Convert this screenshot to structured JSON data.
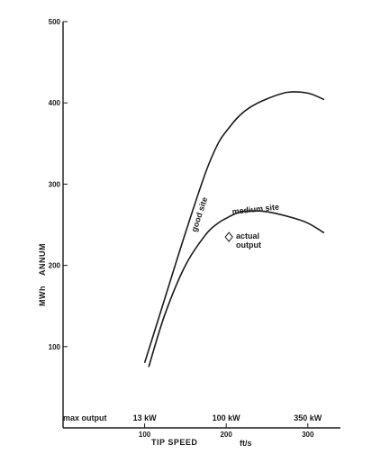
{
  "chart_data": {
    "type": "line",
    "title": "",
    "xlabel": "TIP SPEED",
    "xunit": "ft/s",
    "ylabel": "MWh",
    "ylabel2": "ANNUM",
    "xlim": [
      0,
      340
    ],
    "ylim": [
      0,
      500
    ],
    "x_ticks": [
      100,
      200,
      300
    ],
    "y_ticks": [
      100,
      200,
      300,
      400,
      500
    ],
    "series": [
      {
        "name": "good site",
        "x": [
          100,
          125,
          150,
          175,
          190,
          200,
          215,
          230,
          250,
          275,
          300,
          320
        ],
        "y": [
          80,
          160,
          240,
          315,
          350,
          365,
          383,
          395,
          405,
          413,
          412,
          404
        ]
      },
      {
        "name": "medium site",
        "x": [
          105,
          125,
          150,
          175,
          190,
          200,
          215,
          230,
          250,
          280,
          300,
          320
        ],
        "y": [
          75,
          140,
          200,
          238,
          252,
          258,
          265,
          267,
          266,
          259,
          252,
          240
        ]
      }
    ],
    "annotations": {
      "actual_output": {
        "text_line1": "actual",
        "text_line2": "output",
        "x": 200,
        "y": 235
      },
      "max_output_label": "max  output",
      "max_output_values": [
        {
          "x": 100,
          "label": "13 kW"
        },
        {
          "x": 200,
          "label": "100 kW"
        },
        {
          "x": 300,
          "label": "350 kW"
        }
      ]
    }
  }
}
